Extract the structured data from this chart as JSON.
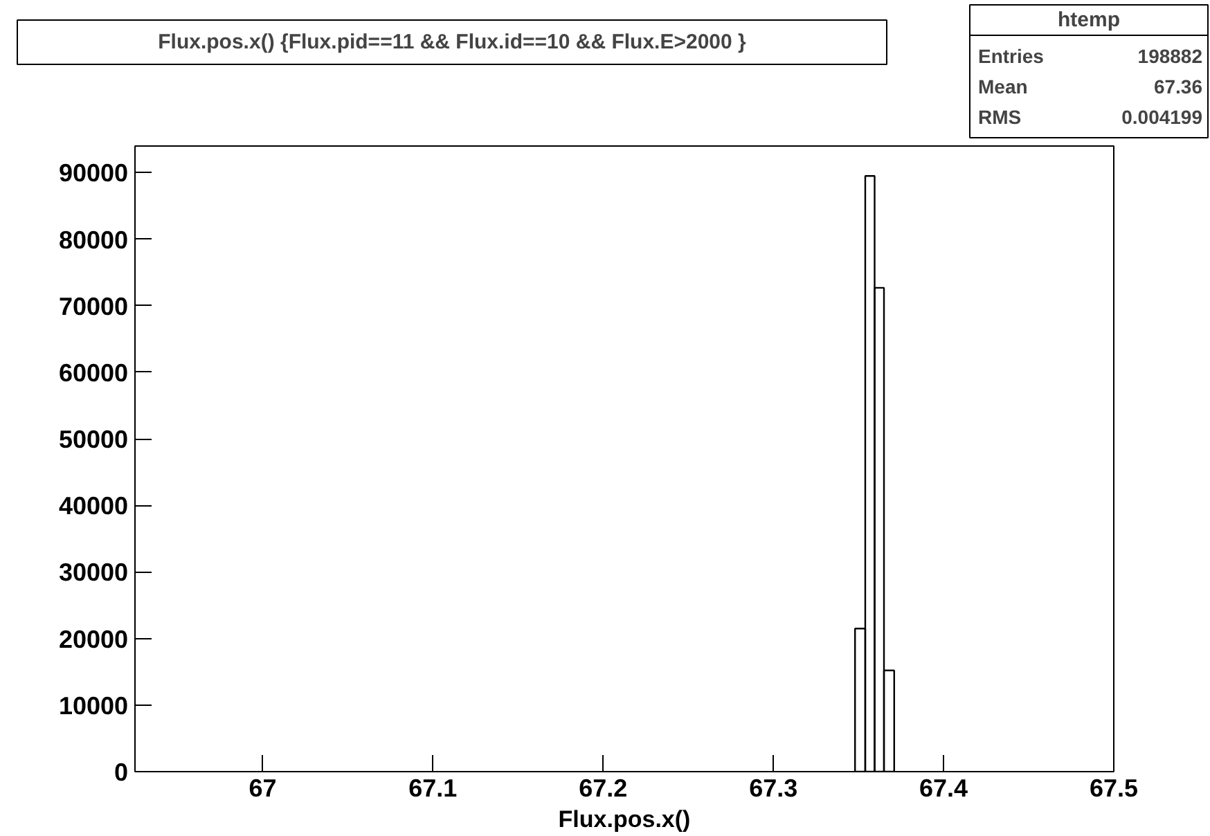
{
  "chart_data": {
    "type": "histogram",
    "title": "Flux.pos.x() {Flux.pid==11 && Flux.id==10 && Flux.E>2000 }",
    "xlabel": "Flux.pos.x()",
    "bins": [
      67.348,
      67.354,
      67.3595,
      67.365,
      67.371
    ],
    "values": [
      21500,
      89500,
      72700,
      15200
    ],
    "color": "#000000",
    "xlim": [
      66.925,
      67.5
    ],
    "xticks": [
      67,
      67.1,
      67.2,
      67.3,
      67.4,
      67.5
    ],
    "ylim": [
      0,
      94000
    ],
    "yticks": [
      0,
      10000,
      20000,
      30000,
      40000,
      50000,
      60000,
      70000,
      80000,
      90000
    ],
    "grid": false,
    "annotations": [
      "htemp",
      "Entries",
      "198882",
      "Mean",
      "67.36",
      "RMS",
      "0.004199"
    ]
  }
}
